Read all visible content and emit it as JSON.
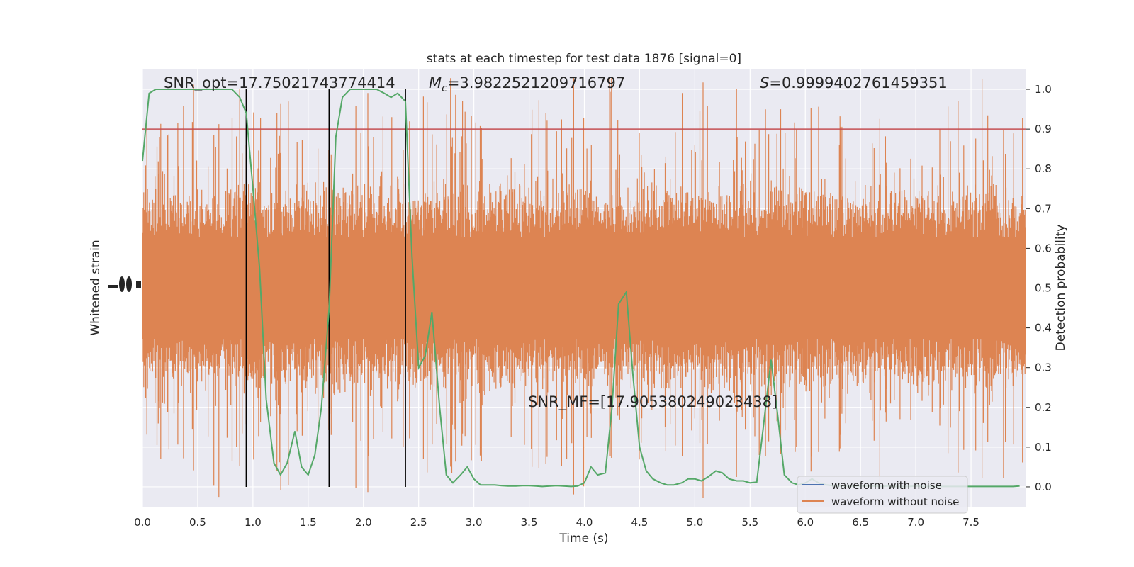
{
  "chart_data": {
    "type": "line",
    "title": "stats at each timestep for test data 1876 [signal=0]",
    "xlabel": "Time (s)",
    "ylabel_left": "Whitened strain",
    "ylabel_right": "Detection probability",
    "xlim": [
      0,
      8
    ],
    "ylim_right": [
      -0.05,
      1.05
    ],
    "x_ticks": [
      "0.0",
      "0.5",
      "1.0",
      "1.5",
      "2.0",
      "2.5",
      "3.0",
      "3.5",
      "4.0",
      "4.5",
      "5.0",
      "5.5",
      "6.0",
      "6.5",
      "7.0",
      "7.5"
    ],
    "y_ticks_right": [
      "0.0",
      "0.1",
      "0.2",
      "0.3",
      "0.4",
      "0.5",
      "0.6",
      "0.7",
      "0.8",
      "0.9",
      "1.0"
    ],
    "grid": true,
    "legend_position": "lower-right",
    "annotations": {
      "snr_opt": "SNR_opt=17.75021743774414",
      "mc_symbol": "M",
      "mc_sub": "c",
      "mc_value": "=3.9822521209716797",
      "s_symbol": "S",
      "s_value": "=0.9999402761459351",
      "snr_mf": "SNR_MF=[17.905380249023438]"
    },
    "threshold": {
      "value": 0.9,
      "color": "#c44e52"
    },
    "vertical_lines": [
      0.94,
      1.69,
      2.38
    ],
    "series": [
      {
        "name": "waveform with noise",
        "color": "#4c72b0"
      },
      {
        "name": "waveform without noise",
        "color": "#dd8452"
      }
    ],
    "probability_color": "#55a868",
    "probability": {
      "x": [
        0.0,
        0.06,
        0.12,
        0.19,
        0.25,
        0.31,
        0.38,
        0.44,
        0.5,
        0.56,
        0.63,
        0.69,
        0.75,
        0.81,
        0.88,
        0.94,
        1.0,
        1.06,
        1.12,
        1.19,
        1.25,
        1.31,
        1.38,
        1.44,
        1.5,
        1.56,
        1.62,
        1.69,
        1.75,
        1.81,
        1.88,
        1.94,
        2.0,
        2.06,
        2.12,
        2.19,
        2.25,
        2.31,
        2.38,
        2.44,
        2.5,
        2.56,
        2.62,
        2.69,
        2.75,
        2.81,
        2.88,
        2.94,
        3.0,
        3.06,
        3.12,
        3.19,
        3.25,
        3.31,
        3.38,
        3.44,
        3.5,
        3.56,
        3.62,
        3.69,
        3.75,
        3.81,
        3.88,
        3.94,
        4.0,
        4.06,
        4.12,
        4.19,
        4.25,
        4.31,
        4.38,
        4.44,
        4.5,
        4.56,
        4.62,
        4.69,
        4.75,
        4.81,
        4.88,
        4.94,
        5.0,
        5.06,
        5.12,
        5.19,
        5.25,
        5.31,
        5.38,
        5.44,
        5.5,
        5.56,
        5.62,
        5.69,
        5.75,
        5.81,
        5.88,
        5.94,
        6.0,
        6.06,
        6.12,
        6.19,
        6.25,
        6.31,
        6.38,
        6.44,
        6.5,
        6.56,
        6.62,
        6.69,
        6.75,
        6.81,
        6.88,
        6.94,
        7.0,
        7.06,
        7.12,
        7.19,
        7.25,
        7.31,
        7.38,
        7.44,
        7.5,
        7.56,
        7.62,
        7.69,
        7.75,
        7.81,
        7.88,
        7.94
      ],
      "y": [
        0.82,
        0.99,
        1.0,
        1.0,
        1.0,
        1.0,
        1.0,
        1.0,
        1.0,
        1.0,
        1.0,
        1.0,
        1.0,
        1.0,
        0.98,
        0.94,
        0.75,
        0.55,
        0.22,
        0.06,
        0.03,
        0.06,
        0.14,
        0.05,
        0.03,
        0.08,
        0.2,
        0.45,
        0.88,
        0.98,
        1.0,
        1.0,
        1.0,
        1.0,
        1.0,
        0.99,
        0.98,
        0.99,
        0.97,
        0.58,
        0.3,
        0.33,
        0.44,
        0.2,
        0.03,
        0.01,
        0.03,
        0.05,
        0.02,
        0.005,
        0.005,
        0.005,
        0.003,
        0.002,
        0.002,
        0.003,
        0.003,
        0.002,
        0.001,
        0.002,
        0.003,
        0.002,
        0.001,
        0.002,
        0.01,
        0.05,
        0.03,
        0.035,
        0.2,
        0.46,
        0.49,
        0.28,
        0.1,
        0.04,
        0.02,
        0.01,
        0.005,
        0.005,
        0.01,
        0.02,
        0.02,
        0.015,
        0.025,
        0.04,
        0.035,
        0.02,
        0.015,
        0.015,
        0.01,
        0.012,
        0.15,
        0.32,
        0.18,
        0.03,
        0.01,
        0.005,
        0.01,
        0.02,
        0.01,
        0.005,
        0.003,
        0.002,
        0.002,
        0.002,
        0.002,
        0.002,
        0.002,
        0.001,
        0.002,
        0.001,
        0.001,
        0.001,
        0.002,
        0.001,
        0.001,
        0.001,
        0.001,
        0.001,
        0.001,
        0.001,
        0.001,
        0.001,
        0.001,
        0.001,
        0.001,
        0.001,
        0.001,
        0.002
      ]
    }
  }
}
